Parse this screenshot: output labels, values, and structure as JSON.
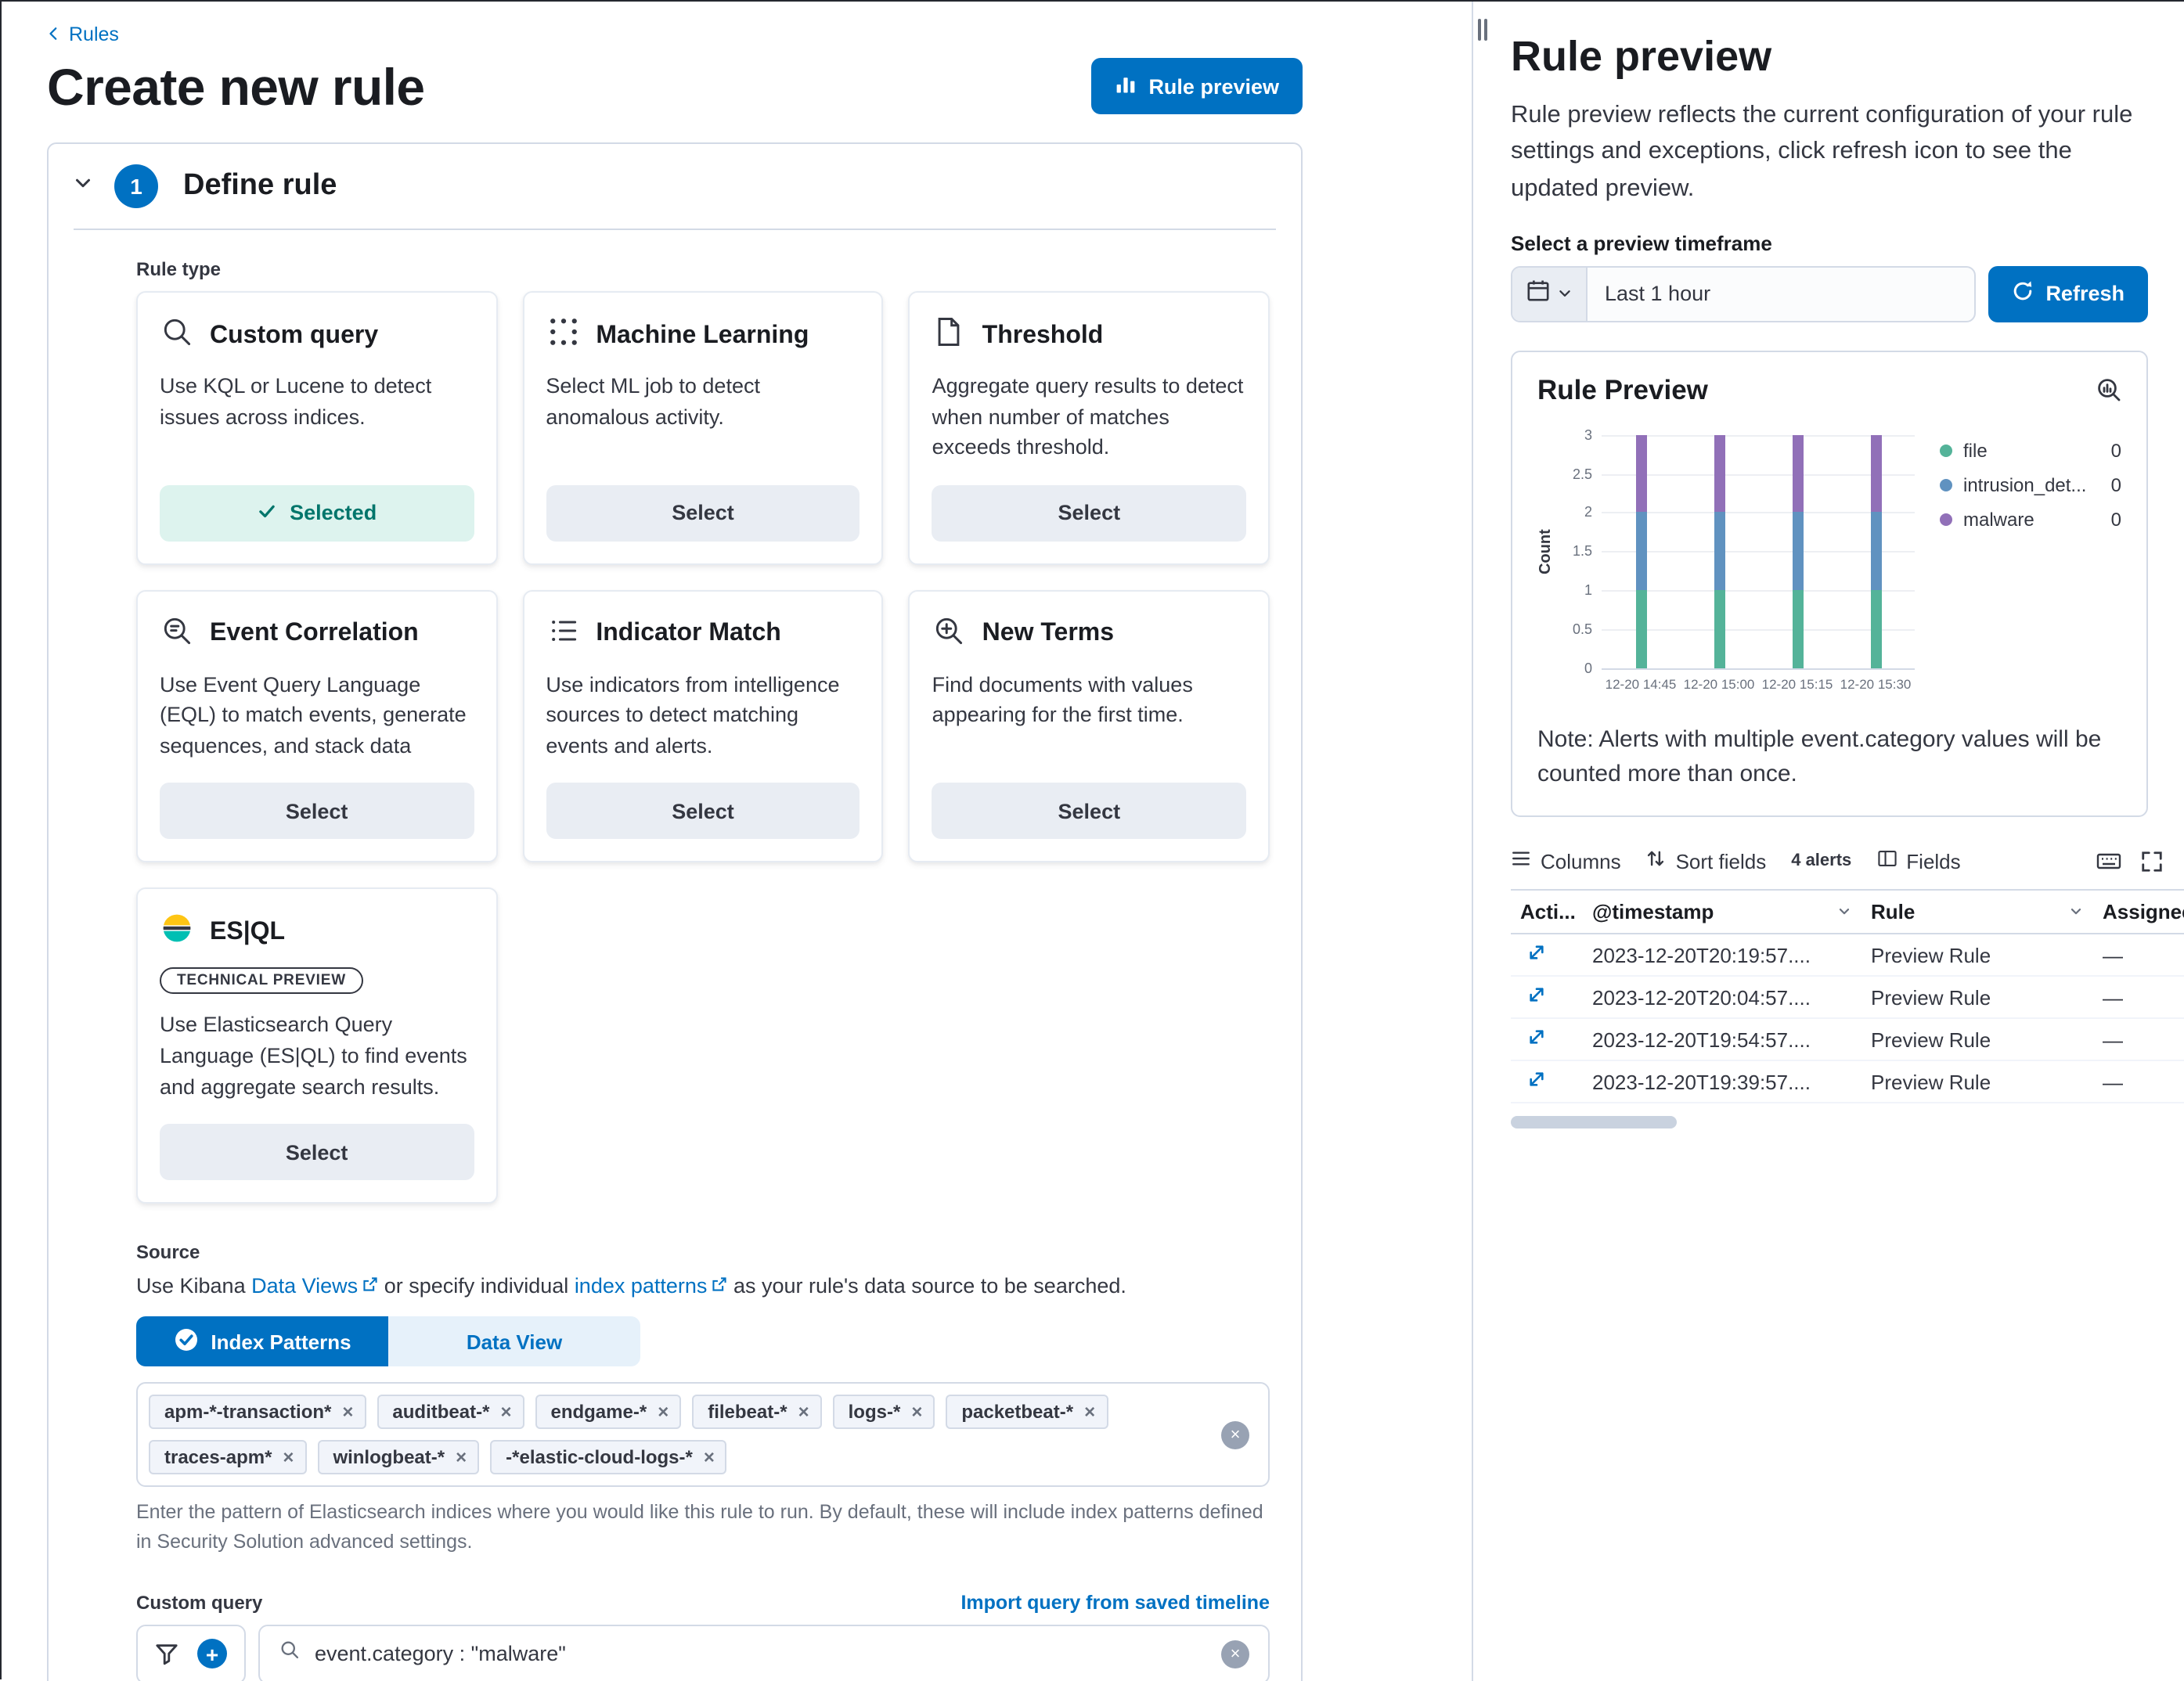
{
  "colors": {
    "primary": "#0071C2",
    "selected_bg": "#DDF3EE",
    "selected_text": "#00756B",
    "border": "#D3DAE6",
    "text": "#343741",
    "subdued": "#69707D",
    "bar_green": "#54B399",
    "bar_blue": "#6092C0",
    "bar_purple": "#9170B8"
  },
  "icons": {
    "remove_tag": "×",
    "clear": "×",
    "add_filter": "+",
    "assignees_empty": "—"
  },
  "breadcrumb": {
    "back_label": "Rules"
  },
  "page": {
    "title": "Create new rule",
    "preview_button": "Rule preview"
  },
  "define_rule": {
    "step_number": "1",
    "title": "Define rule",
    "rule_type_label": "Rule type",
    "cards": [
      {
        "title": "Custom query",
        "description": "Use KQL or Lucene to detect issues across indices.",
        "button": "Selected",
        "selected": true
      },
      {
        "title": "Machine Learning",
        "description": "Select ML job to detect anomalous activity.",
        "button": "Select"
      },
      {
        "title": "Threshold",
        "description": "Aggregate query results to detect when number of matches exceeds threshold.",
        "button": "Select"
      },
      {
        "title": "Event Correlation",
        "description": "Use Event Query Language (EQL) to match events, generate sequences, and stack data",
        "button": "Select"
      },
      {
        "title": "Indicator Match",
        "description": "Use indicators from intelligence sources to detect matching events and alerts.",
        "button": "Select"
      },
      {
        "title": "New Terms",
        "description": "Find documents with values appearing for the first time.",
        "button": "Select"
      },
      {
        "title": "ES|QL",
        "badge": "TECHNICAL PREVIEW",
        "description": "Use Elasticsearch Query Language (ES|QL) to find events and aggregate search results.",
        "button": "Select"
      }
    ],
    "source": {
      "label": "Source",
      "description_parts": [
        "Use Kibana ",
        "Data Views",
        " or specify individual ",
        "index patterns",
        " as your rule's data source to be searched."
      ],
      "toggle": {
        "index_patterns": "Index Patterns",
        "data_view": "Data View"
      },
      "index_tags": [
        "apm-*-transaction*",
        "auditbeat-*",
        "endgame-*",
        "filebeat-*",
        "logs-*",
        "packetbeat-*",
        "traces-apm*",
        "winlogbeat-*",
        "-*elastic-cloud-logs-*"
      ],
      "help": "Enter the pattern of Elasticsearch indices where you would like this rule to run. By default, these will include index patterns defined in Security Solution advanced settings."
    },
    "custom_query": {
      "label": "Custom query",
      "import_link": "Import query from saved timeline",
      "query": "event.category : \"malware\""
    }
  },
  "flyout": {
    "title": "Rule preview",
    "description": "Rule preview reflects the current configuration of your rule settings and exceptions, click refresh icon to see the updated preview.",
    "timeframe_label": "Select a preview timeframe",
    "timeframe_value": "Last 1 hour",
    "refresh_button": "Refresh",
    "preview_card": {
      "title": "Rule Preview",
      "note": "Note: Alerts with multiple event.category values will be counted more than once."
    },
    "toolbar": {
      "columns": "Columns",
      "sort_fields": "Sort fields",
      "alerts_count": "4 alerts",
      "fields": "Fields"
    },
    "table": {
      "headers": [
        "Acti...",
        "@timestamp",
        "Rule",
        "Assignees"
      ],
      "rows": [
        {
          "timestamp": "2023-12-20T20:19:57....",
          "rule": "Preview Rule",
          "assignees": "—"
        },
        {
          "timestamp": "2023-12-20T20:04:57....",
          "rule": "Preview Rule",
          "assignees": "—"
        },
        {
          "timestamp": "2023-12-20T19:54:57....",
          "rule": "Preview Rule",
          "assignees": "—"
        },
        {
          "timestamp": "2023-12-20T19:39:57....",
          "rule": "Preview Rule",
          "assignees": "—"
        }
      ]
    }
  },
  "chart_data": {
    "type": "bar",
    "stacked": true,
    "title": "Rule Preview",
    "categories": [
      "12-20 14:45",
      "12-20 15:00",
      "12-20 15:15",
      "12-20 15:30"
    ],
    "series": [
      {
        "name": "file",
        "color": "#54B399",
        "values": [
          1,
          1,
          1,
          1
        ],
        "legend_value": 0
      },
      {
        "name": "intrusion_det...",
        "color": "#6092C0",
        "values": [
          1,
          1,
          1,
          1
        ],
        "legend_value": 0
      },
      {
        "name": "malware",
        "color": "#9170B8",
        "values": [
          1,
          1,
          1,
          1
        ],
        "legend_value": 0
      }
    ],
    "xlabel": "",
    "ylabel": "Count",
    "ylim": [
      0,
      3
    ],
    "yticks": [
      0,
      0.5,
      1,
      1.5,
      2,
      2.5,
      3
    ],
    "grid": true,
    "legend_position": "right"
  }
}
